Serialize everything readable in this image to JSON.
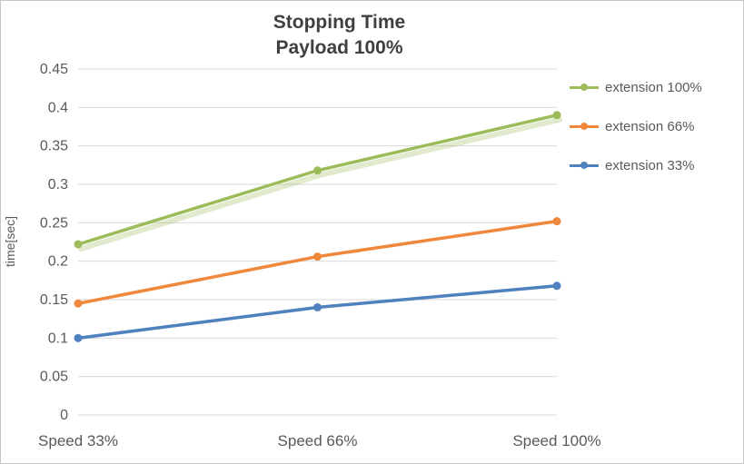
{
  "chart_data": {
    "type": "line",
    "title": "Stopping Time",
    "subtitle": "Payload 100%",
    "ylabel": "time[sec]",
    "xlabel": "",
    "categories": [
      "Speed 33%",
      "Speed 66%",
      "Speed 100%"
    ],
    "series": [
      {
        "name": "extension 100%",
        "values": [
          0.222,
          0.318,
          0.39
        ],
        "color": "#9cbb59",
        "glow": true
      },
      {
        "name": "extension 66%",
        "values": [
          0.145,
          0.206,
          0.252
        ],
        "color": "#f0883c",
        "glow": false
      },
      {
        "name": "extension 33%",
        "values": [
          0.1,
          0.14,
          0.168
        ],
        "color": "#4e81bd",
        "glow": false
      }
    ],
    "ylim": [
      0,
      0.45
    ],
    "ytick_step": 0.05,
    "grid": true,
    "legend_position": "right",
    "gridline_color": "#d9d9d9",
    "axis_text_color": "#595959"
  }
}
